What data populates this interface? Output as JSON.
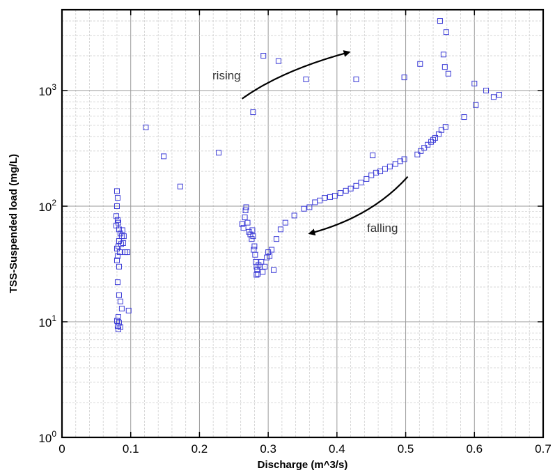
{
  "chart_data": {
    "type": "scatter",
    "title": "",
    "xlabel": "Discharge (m^3/s)",
    "ylabel": "TSS-Suspended load (mg/L)",
    "xlim": [
      0,
      0.7
    ],
    "ylim": [
      1,
      5000
    ],
    "yscale": "log",
    "xticks": [
      0,
      0.1,
      0.2,
      0.3,
      0.4,
      0.5,
      0.6,
      0.7
    ],
    "xtick_labels": [
      "0",
      "0.1",
      "0.2",
      "0.3",
      "0.4",
      "0.5",
      "0.6",
      "0.7"
    ],
    "ytick_labels": [
      {
        "base": "10",
        "exp": "0",
        "value": 1
      },
      {
        "base": "10",
        "exp": "1",
        "value": 10
      },
      {
        "base": "10",
        "exp": "2",
        "value": 100
      },
      {
        "base": "10",
        "exp": "3",
        "value": 1000
      }
    ],
    "grid": true,
    "marker": "open-square",
    "marker_color": "#3a3ad6",
    "annotations": [
      {
        "text": "rising",
        "direction": "increasing-discharge"
      },
      {
        "text": "falling",
        "direction": "decreasing-discharge"
      }
    ],
    "points": [
      [
        0.08,
        135
      ],
      [
        0.081,
        118
      ],
      [
        0.08,
        100
      ],
      [
        0.079,
        82
      ],
      [
        0.081,
        76
      ],
      [
        0.082,
        72
      ],
      [
        0.079,
        68
      ],
      [
        0.083,
        63
      ],
      [
        0.085,
        58
      ],
      [
        0.087,
        55
      ],
      [
        0.083,
        50
      ],
      [
        0.086,
        47
      ],
      [
        0.082,
        45
      ],
      [
        0.08,
        43
      ],
      [
        0.084,
        40
      ],
      [
        0.081,
        37
      ],
      [
        0.08,
        34
      ],
      [
        0.083,
        30
      ],
      [
        0.081,
        22
      ],
      [
        0.083,
        17
      ],
      [
        0.085,
        15
      ],
      [
        0.087,
        13
      ],
      [
        0.082,
        11
      ],
      [
        0.08,
        10.2
      ],
      [
        0.083,
        9.8
      ],
      [
        0.081,
        9.2
      ],
      [
        0.085,
        9.0
      ],
      [
        0.082,
        8.6
      ],
      [
        0.088,
        62
      ],
      [
        0.09,
        55
      ],
      [
        0.089,
        48
      ],
      [
        0.092,
        40
      ],
      [
        0.095,
        40
      ],
      [
        0.097,
        12.5
      ],
      [
        0.122,
        480
      ],
      [
        0.148,
        270
      ],
      [
        0.172,
        148
      ],
      [
        0.228,
        290
      ],
      [
        0.262,
        70
      ],
      [
        0.264,
        65
      ],
      [
        0.266,
        80
      ],
      [
        0.267,
        92
      ],
      [
        0.268,
        98
      ],
      [
        0.27,
        72
      ],
      [
        0.272,
        60
      ],
      [
        0.274,
        57
      ],
      [
        0.276,
        52
      ],
      [
        0.277,
        62
      ],
      [
        0.278,
        55
      ],
      [
        0.28,
        45
      ],
      [
        0.279,
        42
      ],
      [
        0.281,
        38
      ],
      [
        0.282,
        33
      ],
      [
        0.283,
        30
      ],
      [
        0.284,
        28
      ],
      [
        0.285,
        26
      ],
      [
        0.283,
        25.5
      ],
      [
        0.286,
        31
      ],
      [
        0.288,
        30
      ],
      [
        0.29,
        33
      ],
      [
        0.292,
        27
      ],
      [
        0.295,
        30
      ],
      [
        0.298,
        36
      ],
      [
        0.3,
        40
      ],
      [
        0.302,
        37
      ],
      [
        0.305,
        42
      ],
      [
        0.308,
        28
      ],
      [
        0.312,
        52
      ],
      [
        0.318,
        63
      ],
      [
        0.325,
        72
      ],
      [
        0.338,
        83
      ],
      [
        0.352,
        95
      ],
      [
        0.36,
        98
      ],
      [
        0.368,
        108
      ],
      [
        0.375,
        112
      ],
      [
        0.382,
        118
      ],
      [
        0.39,
        120
      ],
      [
        0.397,
        123
      ],
      [
        0.405,
        130
      ],
      [
        0.413,
        136
      ],
      [
        0.42,
        142
      ],
      [
        0.428,
        150
      ],
      [
        0.435,
        160
      ],
      [
        0.443,
        172
      ],
      [
        0.45,
        185
      ],
      [
        0.457,
        195
      ],
      [
        0.463,
        200
      ],
      [
        0.47,
        210
      ],
      [
        0.477,
        220
      ],
      [
        0.485,
        232
      ],
      [
        0.492,
        245
      ],
      [
        0.498,
        255
      ],
      [
        0.452,
        275
      ],
      [
        0.517,
        280
      ],
      [
        0.522,
        300
      ],
      [
        0.527,
        320
      ],
      [
        0.532,
        340
      ],
      [
        0.537,
        360
      ],
      [
        0.54,
        375
      ],
      [
        0.543,
        390
      ],
      [
        0.548,
        420
      ],
      [
        0.552,
        455
      ],
      [
        0.558,
        485
      ],
      [
        0.585,
        590
      ],
      [
        0.278,
        650
      ],
      [
        0.293,
        2000
      ],
      [
        0.315,
        1800
      ],
      [
        0.355,
        1250
      ],
      [
        0.428,
        1250
      ],
      [
        0.498,
        1300
      ],
      [
        0.521,
        1700
      ],
      [
        0.55,
        4000
      ],
      [
        0.555,
        2050
      ],
      [
        0.559,
        3200
      ],
      [
        0.557,
        1600
      ],
      [
        0.562,
        1400
      ],
      [
        0.6,
        1150
      ],
      [
        0.602,
        750
      ],
      [
        0.617,
        1000
      ],
      [
        0.628,
        880
      ],
      [
        0.636,
        920
      ]
    ]
  },
  "arrows": [
    {
      "name": "rising-arrow",
      "from": [
        0.262,
        850
      ],
      "ctrl": [
        0.32,
        1500
      ],
      "to": [
        0.418,
        2150
      ]
    },
    {
      "name": "falling-arrow",
      "from": [
        0.503,
        180
      ],
      "ctrl": [
        0.45,
        80
      ],
      "to": [
        0.36,
        58
      ]
    }
  ]
}
